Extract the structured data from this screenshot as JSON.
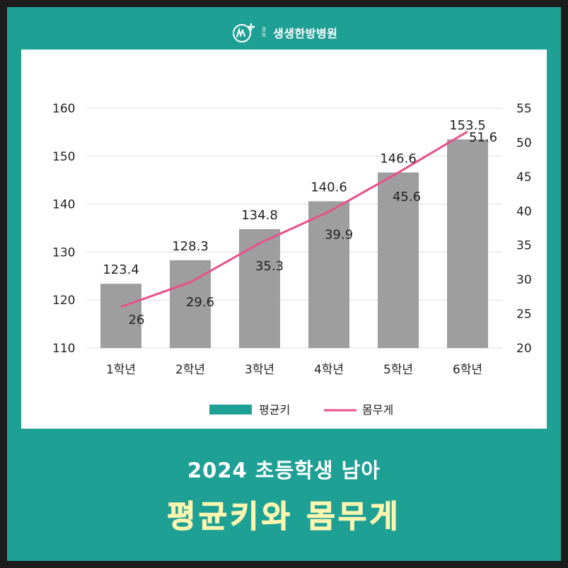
{
  "brand": {
    "small_top": "경",
    "small_bottom": "희",
    "name": "생생한방병원",
    "logo_icon": "hospital-logo-icon"
  },
  "header": {
    "subtitle": "2024 초등학생 남아",
    "title": "평균키와 몸무게"
  },
  "colors": {
    "background": "#1fa095",
    "frame_border": "#1c1c1c",
    "bar": "#9e9e9e",
    "bar_legend": "#1fa095",
    "line": "#e8508a",
    "title": "#fdf6b0"
  },
  "chart_data": {
    "type": "bar+line",
    "categories": [
      "1학년",
      "2학년",
      "3학년",
      "4학년",
      "5학년",
      "6학년"
    ],
    "series": [
      {
        "name": "평균키",
        "type": "bar",
        "axis": "left",
        "values": [
          123.4,
          128.3,
          134.8,
          140.6,
          146.6,
          153.5
        ],
        "labels": [
          "123.4",
          "128.3",
          "134.8",
          "140.6",
          "146.6",
          "153.5"
        ]
      },
      {
        "name": "몸무게",
        "type": "line",
        "axis": "right",
        "values": [
          26,
          29.6,
          35.3,
          39.9,
          45.6,
          51.6
        ],
        "labels": [
          "26",
          "29.6",
          "35.3",
          "39.9",
          "45.6",
          "51.6"
        ]
      }
    ],
    "y_left": {
      "lim": [
        110,
        160
      ],
      "ticks": [
        "110",
        "120",
        "130",
        "140",
        "150",
        "160"
      ]
    },
    "y_right": {
      "lim": [
        20,
        55
      ],
      "ticks": [
        "20",
        "25",
        "30",
        "35",
        "40",
        "45",
        "50",
        "55"
      ]
    },
    "grid": true,
    "legend_position": "bottom"
  }
}
